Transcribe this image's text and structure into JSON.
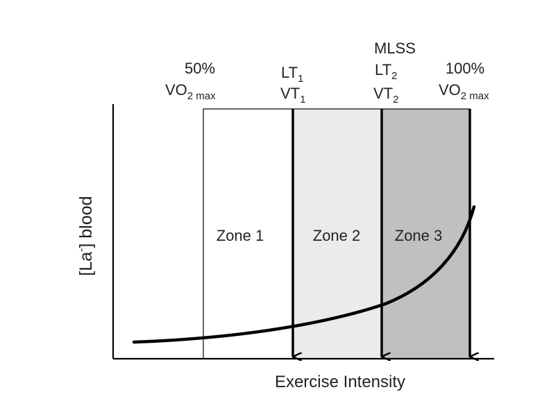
{
  "diagram": {
    "y_axis_label_main": "[La",
    "y_axis_label_sup": "-",
    "y_axis_label_tail": "] blood",
    "x_axis_label": "Exercise Intensity",
    "zones": [
      {
        "label": "Zone 1",
        "fill": "#ffffff"
      },
      {
        "label": "Zone 2",
        "fill": "#ebebeb"
      },
      {
        "label": "Zone 3",
        "fill": "#c0c0c0"
      }
    ],
    "markers": {
      "vo2_50": {
        "pct": "50%",
        "vo": "VO",
        "sub": "2 max"
      },
      "lt1_vt1": {
        "lt": "LT",
        "lt_sub": "1",
        "vt": "VT",
        "vt_sub": "1"
      },
      "mlss_lt2_vt2": {
        "mlss": "MLSS",
        "lt": "LT",
        "lt_sub": "2",
        "vt": "VT",
        "vt_sub": "2"
      },
      "vo2_100": {
        "pct": "100%",
        "vo": "VO",
        "sub": "2 max"
      }
    },
    "colors": {
      "line": "#000000",
      "text": "#222222"
    }
  }
}
